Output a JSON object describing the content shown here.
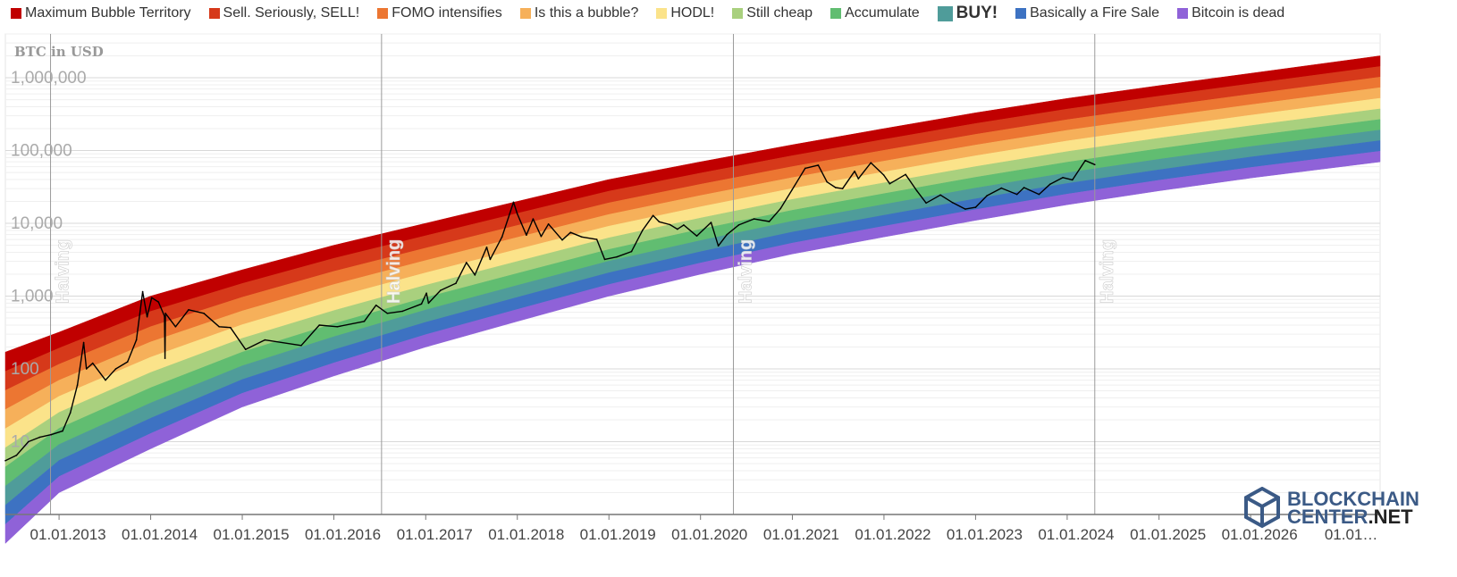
{
  "legend": [
    {
      "label": "Maximum Bubble Territory",
      "color": "#c00000",
      "bold": false
    },
    {
      "label": "Sell. Seriously, SELL!",
      "color": "#d6391a",
      "bold": false
    },
    {
      "label": "FOMO intensifies",
      "color": "#ec7632",
      "bold": false
    },
    {
      "label": "Is this a bubble?",
      "color": "#f6b05a",
      "bold": false
    },
    {
      "label": "HODL!",
      "color": "#fbe38a",
      "bold": false
    },
    {
      "label": "Still cheap",
      "color": "#a9d07e",
      "bold": false
    },
    {
      "label": "Accumulate",
      "color": "#61bd71",
      "bold": false
    },
    {
      "label": "BUY!",
      "color": "#4f9c9a",
      "bold": true
    },
    {
      "label": "Basically a Fire Sale",
      "color": "#3d72c2",
      "bold": false
    },
    {
      "label": "Bitcoin is dead",
      "color": "#8f62d8",
      "bold": false
    }
  ],
  "logo": {
    "line1": "BLOCKCHAIN",
    "line2a": "CENTER",
    "line2b": ".NET"
  },
  "chart_data": {
    "type": "line",
    "title": "",
    "ylabel": "BTC in USD",
    "yscale": "log",
    "ylim": [
      1,
      4000000
    ],
    "xlim": [
      "2012-06-01",
      "2027-06-01"
    ],
    "grid": true,
    "legend_position": "top",
    "y_ticks": [
      {
        "value": 10,
        "label": "10"
      },
      {
        "value": 100,
        "label": "100"
      },
      {
        "value": 1000,
        "label": "1,000"
      },
      {
        "value": 10000,
        "label": "10,000"
      },
      {
        "value": 100000,
        "label": "100,000"
      },
      {
        "value": 1000000,
        "label": "1,000,000"
      }
    ],
    "x_ticks": [
      {
        "date": "2013-01-01",
        "label": "01.01.2013"
      },
      {
        "date": "2014-01-01",
        "label": "01.01.2014"
      },
      {
        "date": "2015-01-01",
        "label": "01.01.2015"
      },
      {
        "date": "2016-01-01",
        "label": "01.01.2016"
      },
      {
        "date": "2017-01-01",
        "label": "01.01.2017"
      },
      {
        "date": "2018-01-01",
        "label": "01.01.2018"
      },
      {
        "date": "2019-01-01",
        "label": "01.01.2019"
      },
      {
        "date": "2020-01-01",
        "label": "01.01.2020"
      },
      {
        "date": "2021-01-01",
        "label": "01.01.2021"
      },
      {
        "date": "2022-01-01",
        "label": "01.01.2022"
      },
      {
        "date": "2023-01-01",
        "label": "01.01.2023"
      },
      {
        "date": "2024-01-01",
        "label": "01.01.2024"
      },
      {
        "date": "2025-01-01",
        "label": "01.01.2025"
      },
      {
        "date": "2026-01-01",
        "label": "01.01.2026"
      },
      {
        "date": "2027-01-01",
        "label": "01.01…"
      }
    ],
    "halvings": [
      {
        "date": "2012-11-28",
        "label": "Halving"
      },
      {
        "date": "2016-07-09",
        "label": "Halving"
      },
      {
        "date": "2020-05-11",
        "label": "Halving"
      },
      {
        "date": "2024-04-20",
        "label": "Halving"
      }
    ],
    "bands": {
      "colors_top_to_bottom": [
        "#c00000",
        "#d6391a",
        "#ec7632",
        "#f6b05a",
        "#fbe38a",
        "#a9d07e",
        "#61bd71",
        "#4f9c9a",
        "#3d72c2",
        "#8f62d8"
      ],
      "top_boundary": [
        {
          "date": "2012-06-01",
          "value": 170
        },
        {
          "date": "2013-01-01",
          "value": 320
        },
        {
          "date": "2014-01-01",
          "value": 1000
        },
        {
          "date": "2015-01-01",
          "value": 2300
        },
        {
          "date": "2016-01-01",
          "value": 5000
        },
        {
          "date": "2017-01-01",
          "value": 10000
        },
        {
          "date": "2018-01-01",
          "value": 20000
        },
        {
          "date": "2019-01-01",
          "value": 40000
        },
        {
          "date": "2020-01-01",
          "value": 70000
        },
        {
          "date": "2021-01-01",
          "value": 120000
        },
        {
          "date": "2022-01-01",
          "value": 200000
        },
        {
          "date": "2023-01-01",
          "value": 330000
        },
        {
          "date": "2024-01-01",
          "value": 520000
        },
        {
          "date": "2025-01-01",
          "value": 780000
        },
        {
          "date": "2026-01-01",
          "value": 1150000
        },
        {
          "date": "2027-06-01",
          "value": 2000000
        }
      ],
      "bottom_boundary": [
        {
          "date": "2012-06-01",
          "value": 0.4
        },
        {
          "date": "2013-01-01",
          "value": 2
        },
        {
          "date": "2014-01-01",
          "value": 8
        },
        {
          "date": "2015-01-01",
          "value": 30
        },
        {
          "date": "2016-01-01",
          "value": 80
        },
        {
          "date": "2017-01-01",
          "value": 200
        },
        {
          "date": "2018-01-01",
          "value": 450
        },
        {
          "date": "2019-01-01",
          "value": 1000
        },
        {
          "date": "2020-01-01",
          "value": 2000
        },
        {
          "date": "2021-01-01",
          "value": 3800
        },
        {
          "date": "2022-01-01",
          "value": 6500
        },
        {
          "date": "2023-01-01",
          "value": 11000
        },
        {
          "date": "2024-01-01",
          "value": 18000
        },
        {
          "date": "2025-01-01",
          "value": 28000
        },
        {
          "date": "2026-01-01",
          "value": 42000
        },
        {
          "date": "2027-06-01",
          "value": 70000
        }
      ]
    },
    "series": [
      {
        "name": "BTC price",
        "color": "#000000",
        "points": [
          {
            "date": "2012-06-01",
            "value": 5.5
          },
          {
            "date": "2012-07-15",
            "value": 6.5
          },
          {
            "date": "2012-09-01",
            "value": 10
          },
          {
            "date": "2012-10-15",
            "value": 11.5
          },
          {
            "date": "2012-12-01",
            "value": 12.5
          },
          {
            "date": "2013-01-15",
            "value": 14
          },
          {
            "date": "2013-02-15",
            "value": 25
          },
          {
            "date": "2013-03-15",
            "value": 60
          },
          {
            "date": "2013-04-09",
            "value": 230
          },
          {
            "date": "2013-04-20",
            "value": 100
          },
          {
            "date": "2013-05-15",
            "value": 120
          },
          {
            "date": "2013-07-05",
            "value": 70
          },
          {
            "date": "2013-08-15",
            "value": 100
          },
          {
            "date": "2013-10-01",
            "value": 125
          },
          {
            "date": "2013-11-05",
            "value": 250
          },
          {
            "date": "2013-11-30",
            "value": 1150
          },
          {
            "date": "2013-12-18",
            "value": 520
          },
          {
            "date": "2014-01-05",
            "value": 950
          },
          {
            "date": "2014-02-01",
            "value": 830
          },
          {
            "date": "2014-02-25",
            "value": 530
          },
          {
            "date": "2014-02-27",
            "value": 140
          },
          {
            "date": "2014-03-01",
            "value": 580
          },
          {
            "date": "2014-04-10",
            "value": 380
          },
          {
            "date": "2014-06-01",
            "value": 650
          },
          {
            "date": "2014-08-01",
            "value": 580
          },
          {
            "date": "2014-10-01",
            "value": 380
          },
          {
            "date": "2014-11-15",
            "value": 370
          },
          {
            "date": "2015-01-14",
            "value": 185
          },
          {
            "date": "2015-04-01",
            "value": 250
          },
          {
            "date": "2015-08-24",
            "value": 210
          },
          {
            "date": "2015-11-04",
            "value": 400
          },
          {
            "date": "2016-01-15",
            "value": 380
          },
          {
            "date": "2016-05-01",
            "value": 450
          },
          {
            "date": "2016-06-17",
            "value": 750
          },
          {
            "date": "2016-08-01",
            "value": 580
          },
          {
            "date": "2016-10-01",
            "value": 620
          },
          {
            "date": "2016-12-15",
            "value": 780
          },
          {
            "date": "2017-01-04",
            "value": 1100
          },
          {
            "date": "2017-01-12",
            "value": 800
          },
          {
            "date": "2017-03-01",
            "value": 1200
          },
          {
            "date": "2017-05-01",
            "value": 1500
          },
          {
            "date": "2017-06-12",
            "value": 2900
          },
          {
            "date": "2017-07-16",
            "value": 1950
          },
          {
            "date": "2017-09-01",
            "value": 4700
          },
          {
            "date": "2017-09-15",
            "value": 3200
          },
          {
            "date": "2017-11-01",
            "value": 6500
          },
          {
            "date": "2017-12-17",
            "value": 19500
          },
          {
            "date": "2018-01-01",
            "value": 13500
          },
          {
            "date": "2018-02-06",
            "value": 6900
          },
          {
            "date": "2018-03-05",
            "value": 11500
          },
          {
            "date": "2018-04-06",
            "value": 6600
          },
          {
            "date": "2018-05-05",
            "value": 9800
          },
          {
            "date": "2018-06-29",
            "value": 5900
          },
          {
            "date": "2018-08-01",
            "value": 7500
          },
          {
            "date": "2018-09-15",
            "value": 6500
          },
          {
            "date": "2018-11-14",
            "value": 6000
          },
          {
            "date": "2018-12-15",
            "value": 3200
          },
          {
            "date": "2019-02-01",
            "value": 3450
          },
          {
            "date": "2019-04-01",
            "value": 4100
          },
          {
            "date": "2019-05-15",
            "value": 8000
          },
          {
            "date": "2019-06-26",
            "value": 12800
          },
          {
            "date": "2019-07-20",
            "value": 10500
          },
          {
            "date": "2019-09-01",
            "value": 9600
          },
          {
            "date": "2019-10-01",
            "value": 8300
          },
          {
            "date": "2019-10-26",
            "value": 9500
          },
          {
            "date": "2019-12-17",
            "value": 6700
          },
          {
            "date": "2020-02-12",
            "value": 10300
          },
          {
            "date": "2020-03-12",
            "value": 4900
          },
          {
            "date": "2020-04-15",
            "value": 7000
          },
          {
            "date": "2020-06-01",
            "value": 9500
          },
          {
            "date": "2020-08-01",
            "value": 11500
          },
          {
            "date": "2020-10-01",
            "value": 10600
          },
          {
            "date": "2020-11-15",
            "value": 16000
          },
          {
            "date": "2020-12-31",
            "value": 29000
          },
          {
            "date": "2021-02-21",
            "value": 57000
          },
          {
            "date": "2021-04-14",
            "value": 63000
          },
          {
            "date": "2021-05-19",
            "value": 37000
          },
          {
            "date": "2021-06-22",
            "value": 31000
          },
          {
            "date": "2021-07-20",
            "value": 30000
          },
          {
            "date": "2021-09-06",
            "value": 52000
          },
          {
            "date": "2021-09-21",
            "value": 41000
          },
          {
            "date": "2021-11-10",
            "value": 68000
          },
          {
            "date": "2021-12-31",
            "value": 46000
          },
          {
            "date": "2022-01-24",
            "value": 35000
          },
          {
            "date": "2022-03-28",
            "value": 47000
          },
          {
            "date": "2022-05-12",
            "value": 28000
          },
          {
            "date": "2022-06-18",
            "value": 19000
          },
          {
            "date": "2022-08-14",
            "value": 24500
          },
          {
            "date": "2022-10-01",
            "value": 19300
          },
          {
            "date": "2022-11-21",
            "value": 15700
          },
          {
            "date": "2023-01-01",
            "value": 16600
          },
          {
            "date": "2023-02-15",
            "value": 24000
          },
          {
            "date": "2023-04-14",
            "value": 30500
          },
          {
            "date": "2023-06-15",
            "value": 25000
          },
          {
            "date": "2023-07-13",
            "value": 31000
          },
          {
            "date": "2023-09-11",
            "value": 25000
          },
          {
            "date": "2023-10-25",
            "value": 34500
          },
          {
            "date": "2023-12-15",
            "value": 42500
          },
          {
            "date": "2024-01-22",
            "value": 39500
          },
          {
            "date": "2024-03-13",
            "value": 73000
          },
          {
            "date": "2024-04-20",
            "value": 64000
          }
        ]
      }
    ]
  }
}
